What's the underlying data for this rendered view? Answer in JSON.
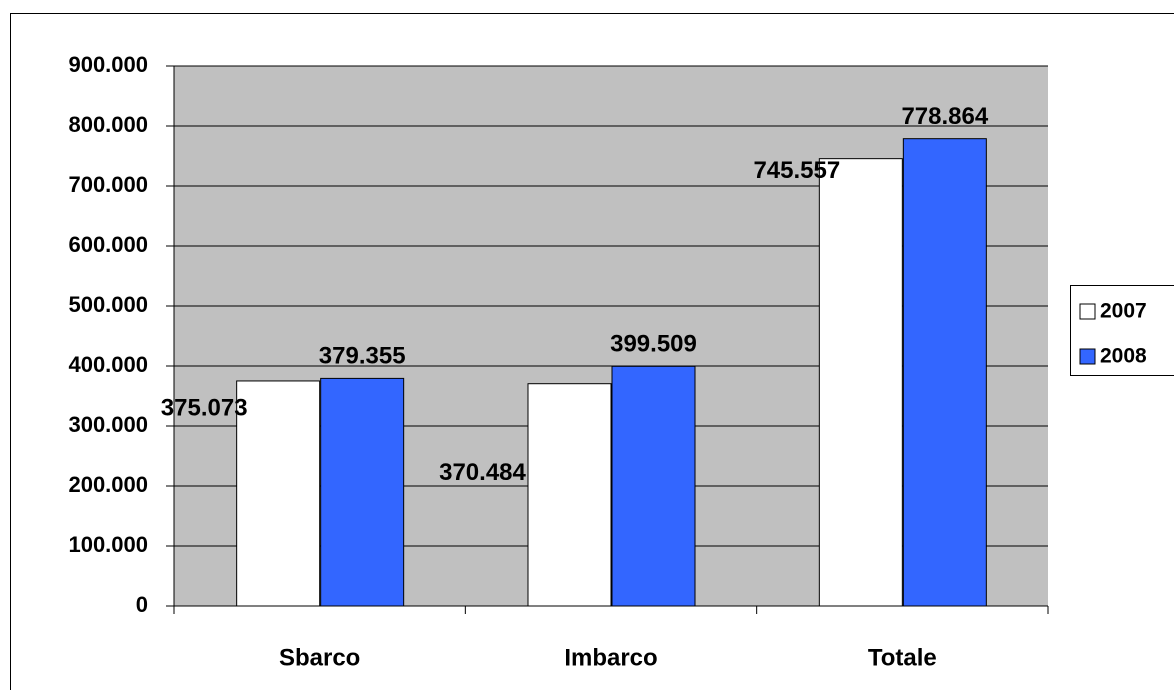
{
  "chart_data": {
    "type": "bar",
    "categories": [
      "Sbarco",
      "Imbarco",
      "Totale"
    ],
    "series": [
      {
        "name": "2007",
        "color": "#ffffff",
        "values": [
          375073,
          370484,
          745557
        ],
        "value_labels": [
          "375.073",
          "370.484",
          "745.557"
        ]
      },
      {
        "name": "2008",
        "color": "#3366ff",
        "values": [
          379355,
          399509,
          778864
        ],
        "value_labels": [
          "379.355",
          "399.509",
          "778.864"
        ]
      }
    ],
    "ylim": [
      0,
      900000
    ],
    "yticks": [
      {
        "value": 0,
        "label": "0"
      },
      {
        "value": 100000,
        "label": "100.000"
      },
      {
        "value": 200000,
        "label": "200.000"
      },
      {
        "value": 300000,
        "label": "300.000"
      },
      {
        "value": 400000,
        "label": "400.000"
      },
      {
        "value": 500000,
        "label": "500.000"
      },
      {
        "value": 600000,
        "label": "600.000"
      },
      {
        "value": 700000,
        "label": "700.000"
      },
      {
        "value": 800000,
        "label": "800.000"
      },
      {
        "value": 900000,
        "label": "900.000"
      }
    ],
    "grid": true,
    "legend": "right",
    "plot_background": "#c0c0c0"
  }
}
